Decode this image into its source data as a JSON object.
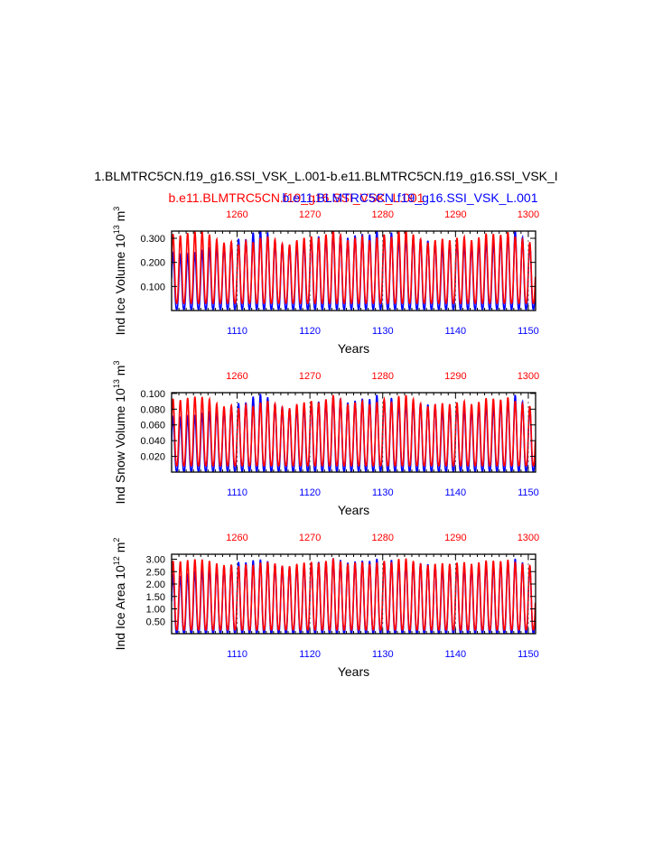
{
  "figure_title": "1.BLMTRC5CN.f19_g16.SSI_VSK_L.001-b.e11.BLMTRC5CN.f19_g16.SSI_VSK_I",
  "legend": {
    "red_label": "b.e11.BLMTRC5CN.f19_g16.SSI_VSK_L.001",
    "blue_label": "b.e11.BLMTRC5CN.f19_g16.SSI_VSK_L.001"
  },
  "colors": {
    "red": "#ff0000",
    "blue": "#0000ff",
    "axis": "#000000"
  },
  "chart_data": [
    {
      "type": "line",
      "name": "ind-ice-volume",
      "ylabel_main": "Ind Ice Volume 10",
      "ylabel_exp": "13",
      "ylabel_unit": " m",
      "ylabel_unit_exp": "3",
      "xlabel": "Years",
      "xlim_bottom": [
        1101,
        1151
      ],
      "xlim_top": [
        1251,
        1301
      ],
      "ylim": [
        0.0,
        0.33
      ],
      "yticks": [
        0.1,
        0.2,
        0.3
      ],
      "ytick_labels": [
        "0.100",
        "0.200",
        "0.300"
      ],
      "xticks_bottom": [
        1110,
        1120,
        1130,
        1140,
        1150
      ],
      "xticks_top": [
        1260,
        1270,
        1280,
        1290,
        1300
      ],
      "series": [
        {
          "name": "blue",
          "color": "blue",
          "min": 0.005,
          "peaks": [
            0.24,
            0.23,
            0.23,
            0.24,
            0.25,
            0.26,
            0.27,
            0.27,
            0.28,
            0.3,
            0.29,
            0.32,
            0.34,
            0.33,
            0.29,
            0.28,
            0.27,
            0.27,
            0.28,
            0.3,
            0.31,
            0.3,
            0.33,
            0.32,
            0.3,
            0.31,
            0.32,
            0.31,
            0.34,
            0.31,
            0.33,
            0.3,
            0.31,
            0.31,
            0.3,
            0.29,
            0.29,
            0.26,
            0.28,
            0.29,
            0.28,
            0.27,
            0.28,
            0.29,
            0.28,
            0.3,
            0.31,
            0.34,
            0.31,
            0.28,
            0.28
          ]
        },
        {
          "name": "red",
          "color": "red",
          "min": 0.03,
          "peaks": [
            0.32,
            0.31,
            0.32,
            0.33,
            0.33,
            0.32,
            0.3,
            0.28,
            0.29,
            0.27,
            0.29,
            0.28,
            0.3,
            0.31,
            0.3,
            0.28,
            0.27,
            0.29,
            0.3,
            0.31,
            0.3,
            0.31,
            0.34,
            0.32,
            0.29,
            0.3,
            0.31,
            0.29,
            0.3,
            0.32,
            0.3,
            0.33,
            0.34,
            0.32,
            0.3,
            0.28,
            0.29,
            0.3,
            0.29,
            0.3,
            0.31,
            0.29,
            0.3,
            0.32,
            0.32,
            0.31,
            0.33,
            0.31,
            0.3,
            0.28,
            0.3
          ]
        }
      ]
    },
    {
      "type": "line",
      "name": "ind-snow-volume",
      "ylabel_main": "Ind Snow Volume 10",
      "ylabel_exp": "13",
      "ylabel_unit": " m",
      "ylabel_unit_exp": "3",
      "xlabel": "Years",
      "xlim_bottom": [
        1101,
        1151
      ],
      "xlim_top": [
        1251,
        1301
      ],
      "ylim": [
        0.0,
        0.101
      ],
      "yticks": [
        0.02,
        0.04,
        0.06,
        0.08,
        0.1
      ],
      "ytick_labels": [
        "0.020",
        "0.040",
        "0.060",
        "0.080",
        "0.100"
      ],
      "xticks_bottom": [
        1110,
        1120,
        1130,
        1140,
        1150
      ],
      "xticks_top": [
        1260,
        1270,
        1280,
        1290,
        1300
      ],
      "series": [
        {
          "name": "blue",
          "color": "blue",
          "min": 0.001,
          "peaks": [
            0.07,
            0.068,
            0.07,
            0.072,
            0.075,
            0.077,
            0.079,
            0.08,
            0.083,
            0.088,
            0.087,
            0.095,
            0.1,
            0.097,
            0.088,
            0.084,
            0.081,
            0.081,
            0.083,
            0.088,
            0.09,
            0.088,
            0.097,
            0.095,
            0.088,
            0.09,
            0.094,
            0.091,
            0.1,
            0.091,
            0.096,
            0.088,
            0.09,
            0.09,
            0.088,
            0.086,
            0.086,
            0.078,
            0.083,
            0.086,
            0.083,
            0.08,
            0.083,
            0.086,
            0.083,
            0.088,
            0.091,
            0.1,
            0.091,
            0.083,
            0.082
          ]
        },
        {
          "name": "red",
          "color": "red",
          "min": 0.008,
          "peaks": [
            0.094,
            0.091,
            0.094,
            0.096,
            0.096,
            0.094,
            0.088,
            0.083,
            0.086,
            0.08,
            0.086,
            0.083,
            0.088,
            0.091,
            0.088,
            0.083,
            0.08,
            0.086,
            0.088,
            0.091,
            0.088,
            0.091,
            0.099,
            0.094,
            0.086,
            0.088,
            0.091,
            0.086,
            0.088,
            0.094,
            0.088,
            0.096,
            0.099,
            0.094,
            0.088,
            0.083,
            0.086,
            0.088,
            0.086,
            0.088,
            0.091,
            0.086,
            0.088,
            0.094,
            0.094,
            0.091,
            0.096,
            0.091,
            0.088,
            0.083,
            0.088
          ]
        }
      ]
    },
    {
      "type": "line",
      "name": "ind-ice-area",
      "ylabel_main": "Ind Ice Area 10",
      "ylabel_exp": "12",
      "ylabel_unit": " m",
      "ylabel_unit_exp": "2",
      "xlabel": "Years",
      "xlim_bottom": [
        1101,
        1151
      ],
      "xlim_top": [
        1251,
        1301
      ],
      "ylim": [
        0.0,
        3.2
      ],
      "yticks": [
        0.5,
        1.0,
        1.5,
        2.0,
        2.5,
        3.0
      ],
      "ytick_labels": [
        "0.50",
        "1.00",
        "1.50",
        "2.00",
        "2.50",
        "3.00"
      ],
      "xticks_bottom": [
        1110,
        1120,
        1130,
        1140,
        1150
      ],
      "xticks_top": [
        1260,
        1270,
        1280,
        1290,
        1300
      ],
      "series": [
        {
          "name": "blue",
          "color": "blue",
          "min": 0.02,
          "peaks": [
            2.35,
            2.3,
            2.4,
            2.5,
            2.6,
            2.65,
            2.7,
            2.7,
            2.75,
            2.9,
            2.85,
            2.95,
            3.0,
            2.95,
            2.8,
            2.75,
            2.7,
            2.7,
            2.75,
            2.85,
            2.9,
            2.85,
            3.05,
            3.0,
            2.85,
            2.9,
            2.95,
            2.9,
            3.05,
            2.9,
            3.0,
            2.85,
            2.9,
            2.9,
            2.85,
            2.8,
            2.8,
            2.6,
            2.75,
            2.8,
            2.75,
            2.7,
            2.75,
            2.8,
            2.75,
            2.85,
            2.9,
            3.05,
            2.9,
            2.75,
            2.7
          ]
        },
        {
          "name": "red",
          "color": "red",
          "min": 0.15,
          "peaks": [
            2.95,
            2.9,
            2.95,
            3.0,
            3.0,
            2.95,
            2.85,
            2.75,
            2.8,
            2.7,
            2.8,
            2.75,
            2.85,
            2.9,
            2.85,
            2.75,
            2.7,
            2.8,
            2.85,
            2.9,
            2.85,
            2.9,
            3.05,
            2.95,
            2.8,
            2.85,
            2.9,
            2.8,
            2.85,
            2.95,
            2.85,
            3.0,
            3.05,
            2.95,
            2.85,
            2.75,
            2.8,
            2.85,
            2.8,
            2.85,
            2.9,
            2.8,
            2.85,
            2.95,
            2.95,
            2.9,
            3.0,
            2.9,
            2.85,
            2.75,
            2.85
          ]
        }
      ]
    }
  ]
}
